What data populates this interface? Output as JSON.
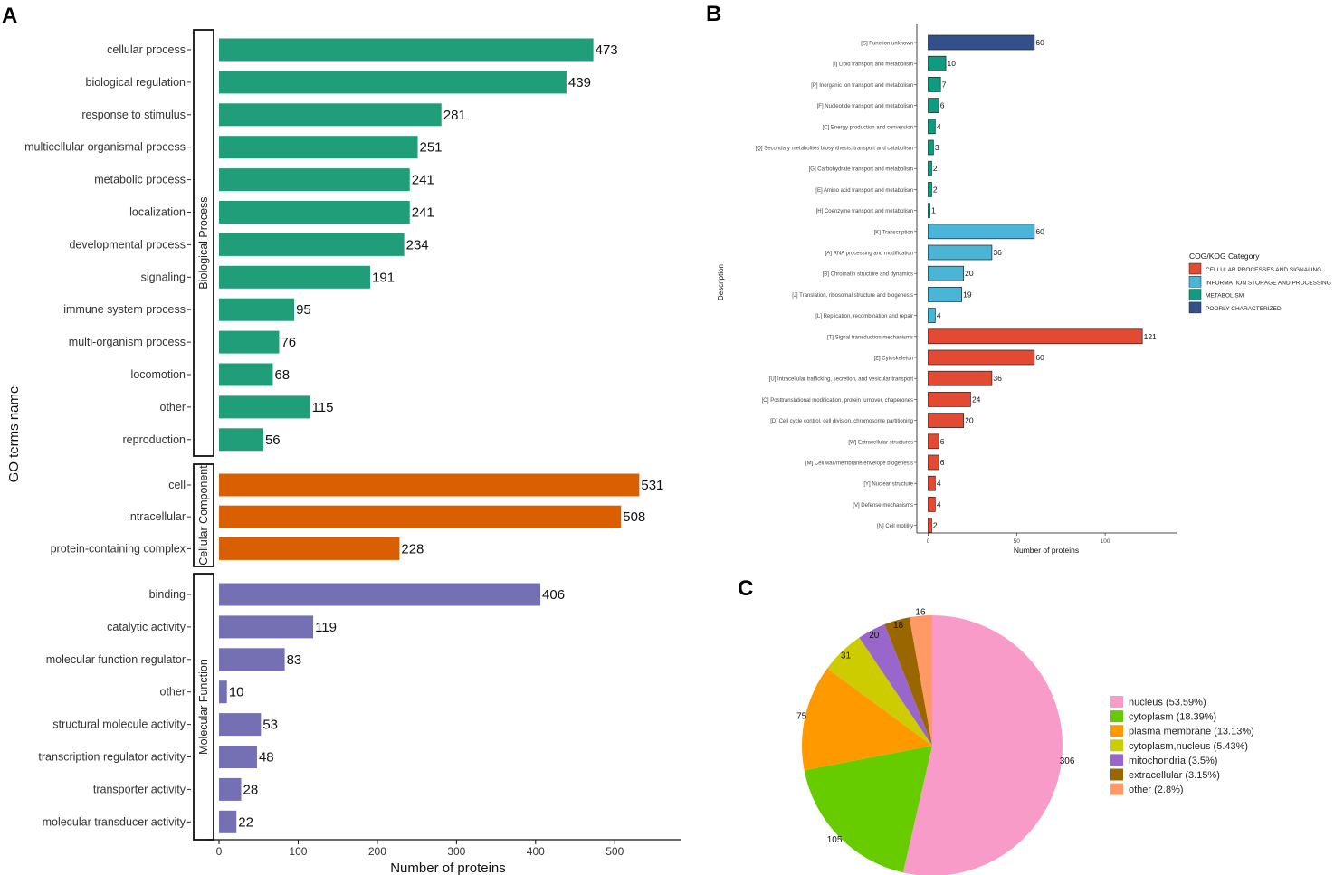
{
  "panels": {
    "a": "A",
    "b": "B",
    "c": "C"
  },
  "colors": {
    "bp": "#1f9e79",
    "cc": "#d95f02",
    "mf": "#7570b3",
    "cog_cps": "#e34a33",
    "cog_isp": "#4ab5d6",
    "cog_met": "#129a80",
    "cog_pc": "#34508a",
    "pie": [
      "#f99bc9",
      "#66cc00",
      "#ff9900",
      "#cccc00",
      "#9966cc",
      "#996600",
      "#ff9966"
    ]
  },
  "chart_data": [
    {
      "type": "bar",
      "orientation": "horizontal",
      "title": "",
      "xlabel": "Number of proteins",
      "ylabel": "GO terms name",
      "xlim": [
        0,
        550
      ],
      "xticks": [
        0,
        100,
        200,
        300,
        400,
        500
      ],
      "groups": [
        {
          "name": "Biological Process",
          "color_key": "bp",
          "categories": [
            "cellular process",
            "biological regulation",
            "response to stimulus",
            "multicellular organismal process",
            "metabolic process",
            "localization",
            "developmental process",
            "signaling",
            "immune system process",
            "multi-organism process",
            "locomotion",
            "other",
            "reproduction"
          ],
          "values": [
            473,
            439,
            281,
            251,
            241,
            241,
            234,
            191,
            95,
            76,
            68,
            115,
            56
          ]
        },
        {
          "name": "Cellular Component",
          "color_key": "cc",
          "categories": [
            "cell",
            "intracellular",
            "protein-containing complex"
          ],
          "values": [
            531,
            508,
            228
          ]
        },
        {
          "name": "Molecular Function",
          "color_key": "mf",
          "categories": [
            "binding",
            "catalytic activity",
            "molecular function regulator",
            "other",
            "structural molecule activity",
            "transcription regulator activity",
            "transporter activity",
            "molecular transducer activity"
          ],
          "values": [
            406,
            119,
            83,
            10,
            53,
            48,
            28,
            22
          ]
        }
      ]
    },
    {
      "type": "bar",
      "orientation": "horizontal",
      "title": "",
      "xlabel": "Number of proteins",
      "ylabel": "Description",
      "xlim": [
        0,
        140
      ],
      "xticks": [
        0,
        50,
        100
      ],
      "legend_title": "COG/KOG Category",
      "legend_placement": "right",
      "legend": [
        {
          "label": "CELLULAR PROCESSES AND SIGNALING",
          "color_key": "cog_cps"
        },
        {
          "label": "INFORMATION STORAGE AND PROCESSING",
          "color_key": "cog_isp"
        },
        {
          "label": "METABOLISM",
          "color_key": "cog_met"
        },
        {
          "label": "POORLY CHARACTERIZED",
          "color_key": "cog_pc"
        }
      ],
      "categories": [
        "[S] Function unknown",
        "[I] Lipid transport and metabolism",
        "[P] Inorganic ion transport and metabolism",
        "[F] Nucleotide transport and metabolism",
        "[C] Energy production and conversion",
        "[Q] Secondary metabolites biosynthesis, transport and catabolism",
        "[G] Carbohydrate transport and metabolism",
        "[E] Amino acid transport and metabolism",
        "[H] Coenzyme transport and metabolism",
        "[K] Transcription",
        "[A] RNA processing and modification",
        "[B] Chromatin structure and dynamics",
        "[J] Translation, ribosomal structure and biogenesis",
        "[L] Replication, recombination and repair",
        "[T] Signal transduction mechanisms",
        "[Z] Cytoskeleton",
        "[U] Intracellular trafficking, secretion, and vesicular transport",
        "[O] Posttranslational modification, protein turnover, chaperones",
        "[D] Cell cycle control, cell division, chromosome partitioning",
        "[W] Extracellular structures",
        "[M] Cell wall/membrane/envelope biogenesis",
        "[Y] Nuclear structure",
        "[V] Defense mechanisms",
        "[N] Cell motility"
      ],
      "values": [
        60,
        10,
        7,
        6,
        4,
        3,
        2,
        2,
        1,
        60,
        36,
        20,
        19,
        4,
        121,
        60,
        36,
        24,
        20,
        6,
        6,
        4,
        4,
        2
      ],
      "series_keys": [
        "cog_pc",
        "cog_met",
        "cog_met",
        "cog_met",
        "cog_met",
        "cog_met",
        "cog_met",
        "cog_met",
        "cog_met",
        "cog_isp",
        "cog_isp",
        "cog_isp",
        "cog_isp",
        "cog_isp",
        "cog_cps",
        "cog_cps",
        "cog_cps",
        "cog_cps",
        "cog_cps",
        "cog_cps",
        "cog_cps",
        "cog_cps",
        "cog_cps",
        "cog_cps"
      ]
    },
    {
      "type": "pie",
      "title": "",
      "legend_placement": "right",
      "labels": [
        "nucleus (53.59%)",
        "cytoplasm (18.39%)",
        "plasma membrane (13.13%)",
        "cytoplasm,nucleus (5.43%)",
        "mitochondria (3.5%)",
        "extracellular (3.15%)",
        "other (2.8%)"
      ],
      "values": [
        306,
        105,
        75,
        31,
        20,
        18,
        16
      ]
    }
  ]
}
